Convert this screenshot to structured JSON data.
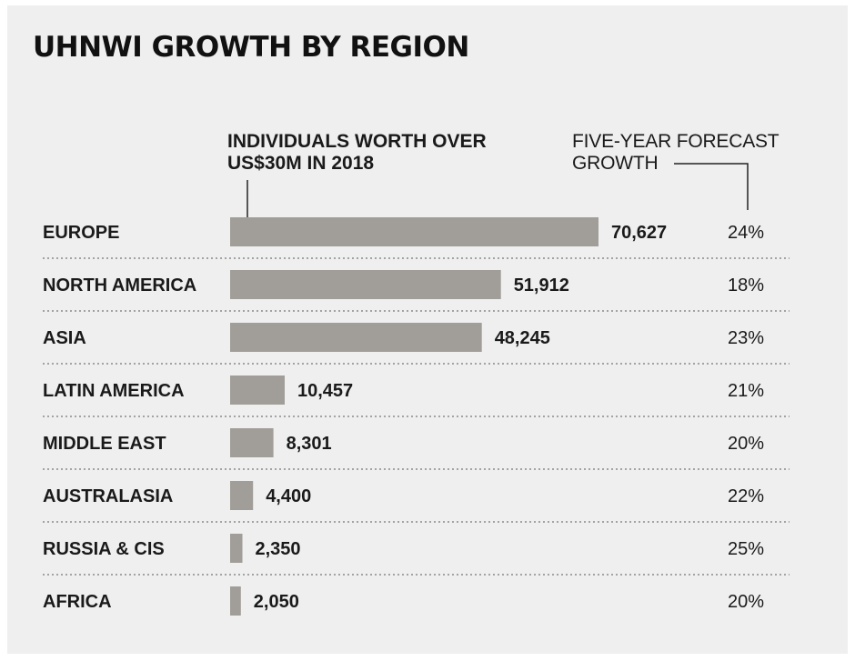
{
  "chart_data": {
    "type": "bar",
    "orientation": "horizontal",
    "title": "UHNWI GROWTH BY REGION",
    "bar_header": "INDIVIDUALS WORTH OVER US$30M IN 2018",
    "growth_header": "FIVE-YEAR FORECAST GROWTH",
    "categories": [
      "EUROPE",
      "NORTH AMERICA",
      "ASIA",
      "LATIN AMERICA",
      "MIDDLE EAST",
      "AUSTRALASIA",
      "RUSSIA & CIS",
      "AFRICA"
    ],
    "values": [
      70627,
      51912,
      48245,
      10457,
      8301,
      4400,
      2350,
      2050
    ],
    "value_labels": [
      "70,627",
      "51,912",
      "48,245",
      "10,457",
      "8,301",
      "4,400",
      "2,350",
      "2,050"
    ],
    "growth": [
      "24%",
      "18%",
      "23%",
      "21%",
      "20%",
      "22%",
      "25%",
      "20%"
    ],
    "xlim": [
      0,
      70627
    ],
    "grid": false,
    "legend": "none",
    "bar_color": "#a19d99"
  }
}
